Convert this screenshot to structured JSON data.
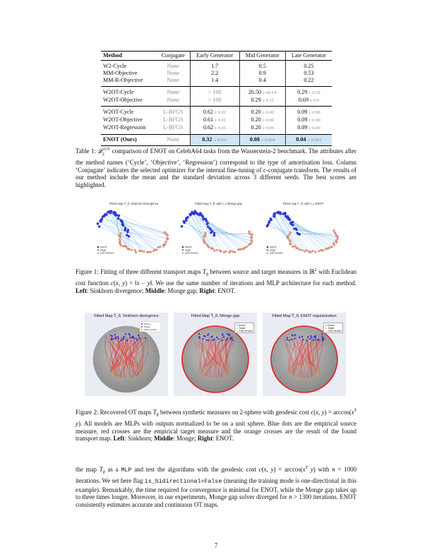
{
  "table": {
    "headers": [
      "Method",
      "Conjugate",
      "Early Generator",
      "Mid Generator",
      "Late Generator"
    ],
    "groups": [
      [
        {
          "method": "W2-Cycle",
          "conj": "None",
          "early": "1.7",
          "mid": "0.5",
          "late": "0.25"
        },
        {
          "method": "MM-Objective",
          "conj": "None",
          "early": "2.2",
          "mid": "0.9",
          "late": "0.53"
        },
        {
          "method": "MM-R-Objective",
          "conj": "None",
          "early": "1.4",
          "mid": "0.4",
          "late": "0.22"
        }
      ],
      [
        {
          "method": "W2OT-Cycle",
          "conj": "None",
          "early": "> 100",
          "mid": "26.50",
          "mid_std": "± 60.14",
          "late": "0.29",
          "late_std": "± 0.59"
        },
        {
          "method": "W2OT-Objective",
          "conj": "None",
          "early": "> 100",
          "mid": "0.29",
          "mid_std": "± 0.15",
          "late": "0.69",
          "late_std": "± 0.9"
        }
      ],
      [
        {
          "method": "W2OT-Cycle",
          "conj": "L-BFGS",
          "early": "0.62",
          "early_std": "± 0.01",
          "mid": "0.20",
          "mid_std": "± 0.00",
          "late": "0.09",
          "late_std": "± 0.00"
        },
        {
          "method": "W2OT-Objective",
          "conj": "L-BFGS",
          "early": "0.61",
          "early_std": "± 0.01",
          "mid": "0.20",
          "mid_std": "± 0.00",
          "late": "0.09",
          "late_std": "± 0.00"
        },
        {
          "method": "W2OT-Regression",
          "conj": "L-BFGS",
          "early": "0.62",
          "early_std": "± 0.01",
          "mid": "0.20",
          "mid_std": "± 0.00",
          "late": "0.09",
          "late_std": "± 0.00"
        }
      ]
    ],
    "final": {
      "method": "ENOT (Ours)",
      "conj": "None",
      "early": "0.32",
      "early_std": "± 0.011",
      "mid": "0.08",
      "mid_std": "± 0.004",
      "late": "0.04",
      "late_std": "± 0.002"
    }
  },
  "table_caption": {
    "label": "Table 1:",
    "html": "<i>𝓛</i><sub style='font-size:6px'>2</sub><sup style='font-size:6px'>UV</sup> comparison of ENOT on CelebA64 tasks from the Wasserstein-2 benchmark. The attributes after the method names (‘Cycle’, ‘Objective’, ‘Regression’) correspond to the type of amortisation loss. Column ‘Conjugate’ indicates the selected optimizer for the internal fine-tuning of <i>c</i>-conjugate transform. The results of our method include the mean and the standard deviation across 3 different seeds. The best scores are highlighted."
  },
  "figure1": {
    "panels": [
      {
        "title": "Fitted map T_θ, Sinkhorn Divergence"
      },
      {
        "title": "Fitted map T_θ, with ℓ_c Monge gap"
      },
      {
        "title": "Fitted map T_θ, with ℓ_c ENOT"
      }
    ],
    "legend": [
      "source",
      "target",
      "push-forward"
    ],
    "caption": {
      "label": "Figure 1:",
      "html": "Fitting of three different transport maps <i>T<sub style='font-size:6px'>θ</sub></i> between source and target measures in ℝ<sup style='font-size:6px'>2</sup> with Euclidean cost function <i>c</i>(<i>x</i>, <i>y</i>) = ‖<i>x</i> − <i>y</i>‖. We use the same number of iterations and MLP architecture for each method. <b>Left</b>: Sinkhorn divergence; <b>Middle</b>: Monge gap; <b>Right</b>: ENOT."
    }
  },
  "figure2": {
    "panels": [
      {
        "title": "Fitted Map T̂_θ, Sinkhorn divergence"
      },
      {
        "title": "Fitted Map T̂_θ, Monge gap"
      },
      {
        "title": "Fitted Map T̂_θ, ENOT regularization"
      }
    ],
    "legend": [
      "Source",
      "Target",
      "Push-forward"
    ],
    "caption": {
      "label": "Figure 2:",
      "html": "Recovered OT maps <i>T<sub style='font-size:6px'>θ</sub></i> between synthetic measures on 2-sphere with geodesic cost <i>c</i>(<i>x</i>, <i>y</i>) = arccos(<i>x</i><sup style='font-size:6px'><i>T</i></sup> <i>y</i>). All models are MLPs with outputs normalized to be on a unit sphere. Blue dots are the empirical source measure, red crosses are the empirical target measure and the orange crosses are the result of the found transport map. <b>Left</b>: Sinkhorn; <b>Middle</b>: Monge; <b>Right</b>: ENOT."
    }
  },
  "body_text": {
    "html": "the map <i>T<sub style='font-size:6px'>θ</sub></i> as a <span class='mono'>MLP</span> and test the algorithms with the geodesic cost <i>c</i>(<i>x</i>, <i>y</i>) = arccos(<i>x</i><sup style='font-size:6px'><i>T</i></sup> <i>y</i>) with <i>n</i> = 1000 iterations. We set here flag <span class='mono'>is_bidirectional=False</span> (meaning the training mode is one-directional in this example). Remarkably, the time required for convergence is minimal for ENOT, while the Monge gap takes up to three times longer. Moreover, in our experiments, Monge gap solver diverged for <i>n</i> &gt; 1300 iterations. ENOT consistently estimates accurate and continuous OT maps."
  },
  "page_number": "7",
  "colors": {
    "source": "#2f3ad6",
    "target": "#e0702a",
    "pushforward": "#c8a4d8",
    "highlight": "#cfe6f8",
    "sphere_line": "#e02020"
  }
}
